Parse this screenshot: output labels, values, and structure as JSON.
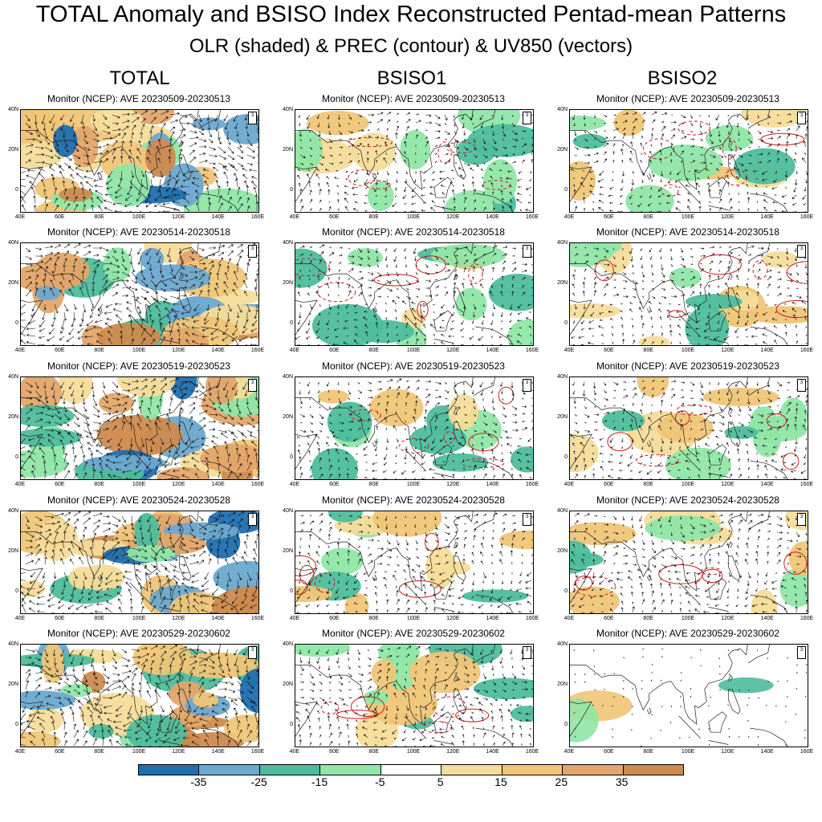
{
  "title": "TOTAL Anomaly and BSISO Index Reconstructed Pentad-mean Patterns",
  "subtitle": "OLR (shaded) & PREC (contour) & UV850 (vectors)",
  "columns": [
    "TOTAL",
    "BSISO1",
    "BSISO2"
  ],
  "panel_prefix": "Monitor (NCEP): AVE ",
  "periods": [
    "20230509-20230513",
    "20230514-20230518",
    "20230519-20230523",
    "20230524-20230528",
    "20230529-20230602"
  ],
  "x_ticks": [
    "40E",
    "60E",
    "80E",
    "100E",
    "120E",
    "140E",
    "160E"
  ],
  "y_ticks": [
    "40N",
    "20N",
    "0"
  ],
  "vector_ref": "3",
  "colorbar": {
    "labels": [
      "-35",
      "-25",
      "-15",
      "-5",
      "5",
      "15",
      "25",
      "35"
    ],
    "colors": [
      "#1f6fb0",
      "#6ba8cf",
      "#4dbd9c",
      "#8fe6a6",
      "#ffffff",
      "#f6dc9a",
      "#efc577",
      "#e3a56a",
      "#cf8a4e"
    ]
  },
  "chart_data": {
    "type": "heatmap",
    "title": "TOTAL Anomaly and BSISO Index Reconstructed Pentad-mean Patterns",
    "subtitle": "OLR (shaded) & PREC (contour) & UV850 (vectors)",
    "xlim": [
      "40E",
      "160E"
    ],
    "ylim": [
      "-10",
      "40N"
    ],
    "grid": false,
    "legend": "bottom",
    "colorbar_levels": [
      -35,
      -25,
      -15,
      -5,
      5,
      15,
      25,
      35
    ],
    "panels": [
      {
        "column": "TOTAL",
        "period": "20230509-20230513"
      },
      {
        "column": "BSISO1",
        "period": "20230509-20230513"
      },
      {
        "column": "BSISO2",
        "period": "20230509-20230513"
      },
      {
        "column": "TOTAL",
        "period": "20230514-20230518"
      },
      {
        "column": "BSISO1",
        "period": "20230514-20230518"
      },
      {
        "column": "BSISO2",
        "period": "20230514-20230518"
      },
      {
        "column": "TOTAL",
        "period": "20230519-20230523"
      },
      {
        "column": "BSISO1",
        "period": "20230519-20230523"
      },
      {
        "column": "BSISO2",
        "period": "20230519-20230523"
      },
      {
        "column": "TOTAL",
        "period": "20230524-20230528"
      },
      {
        "column": "BSISO1",
        "period": "20230524-20230528"
      },
      {
        "column": "BSISO2",
        "period": "20230524-20230528"
      },
      {
        "column": "TOTAL",
        "period": "20230529-20230602"
      },
      {
        "column": "BSISO1",
        "period": "20230529-20230602"
      },
      {
        "column": "BSISO2",
        "period": "20230529-20230602"
      }
    ]
  }
}
